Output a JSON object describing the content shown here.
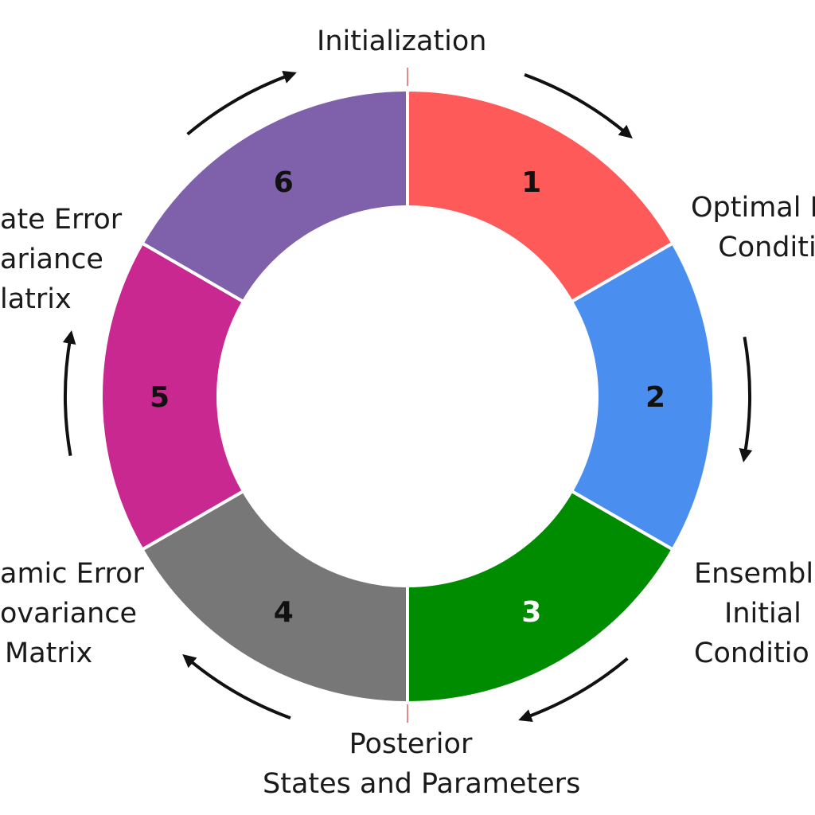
{
  "labels": {
    "top": "Initialization",
    "right_upper": [
      "Optimal I",
      "Conditi"
    ],
    "right_lower": [
      "Ensemble",
      "Initial",
      "Conditio"
    ],
    "bottom": [
      "Posterior",
      "States and Parameters"
    ],
    "left_lower": [
      "amic Error",
      "ovariance",
      "Matrix"
    ],
    "left_upper": [
      "ate Error",
      "ariance",
      "latrix"
    ]
  },
  "segments": [
    {
      "number": "1",
      "color": "#ff5a5a",
      "text_color": "#111111"
    },
    {
      "number": "2",
      "color": "#4a8ff0",
      "text_color": "#111111"
    },
    {
      "number": "3",
      "color": "#008c00",
      "text_color": "#ffffff"
    },
    {
      "number": "4",
      "color": "#777777",
      "text_color": "#111111"
    },
    {
      "number": "5",
      "color": "#c8288f",
      "text_color": "#111111"
    },
    {
      "number": "6",
      "color": "#7f60aa",
      "text_color": "#111111"
    }
  ],
  "colors": {
    "arrow": "#111111",
    "tick": "#e08a8a",
    "separator": "#ffffff"
  }
}
